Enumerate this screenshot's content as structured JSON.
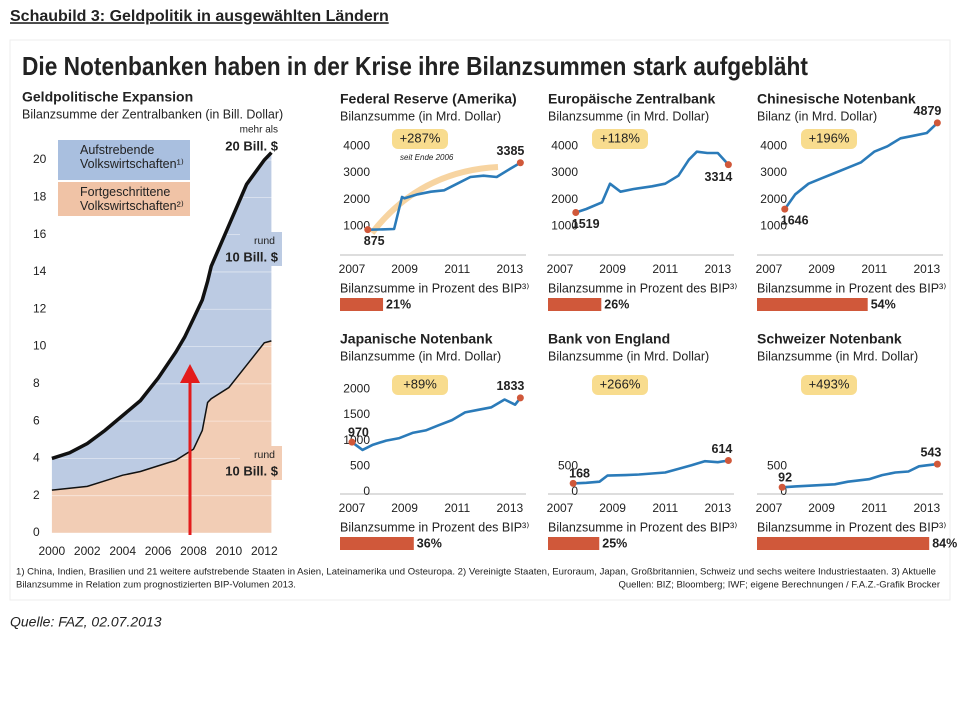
{
  "page_title": "Schaubild 3: Geldpolitik in ausgewählten Ländern",
  "headline": "Die Notenbanken haben in der Krise ihre Bilanzsummen stark aufgebläht",
  "footnote_lines": [
    "1) China, Indien, Brasilien und 21 weitere aufstrebende Staaten in Asien, Lateinamerika und Osteuropa. 2) Vereinigte Staaten, Euroraum, Japan, Großbritannien, Schweiz und sechs weitere Industriestaaten. 3) Aktuelle",
    "Bilanzsumme in Relation zum prognostizierten BIP-Volumen 2013."
  ],
  "credits": "Quellen: BIZ; Bloomberg; IWF; eigene Berechnungen /  F.A.Z.-Grafik Brocker",
  "source": "Quelle: FAZ, 02.07.2013",
  "chart_data": [
    {
      "type": "area",
      "stacked": true,
      "title": "Geldpolitische Expansion",
      "subtitle": "Bilanzsumme der Zentralbanken (in Bill. Dollar)",
      "x": [
        2000,
        2001,
        2002,
        2003,
        2004,
        2005,
        2006,
        2007,
        2007.5,
        2008,
        2008.5,
        2008.8,
        2009,
        2010,
        2011,
        2012,
        2012.4
      ],
      "series": [
        {
          "name": "Fortgeschrittene Volkswirtschaften²⁾",
          "color": "#f2cdb5",
          "legend_color": "#f0c3a6",
          "values": [
            2.3,
            2.4,
            2.5,
            2.8,
            3.1,
            3.3,
            3.6,
            3.9,
            4.2,
            4.5,
            5.5,
            7.0,
            7.2,
            7.8,
            9.0,
            10.2,
            10.3
          ]
        },
        {
          "name": "Aufstrebende Volkswirtschaften¹⁾",
          "color": "#bccbe3",
          "legend_color": "#a9bfdf",
          "values": [
            1.7,
            1.9,
            2.3,
            2.7,
            3.2,
            3.8,
            4.7,
            5.8,
            6.3,
            7.0,
            7.0,
            6.5,
            7.1,
            8.7,
            9.7,
            9.8,
            10.1
          ]
        }
      ],
      "xlim": [
        1999.5,
        2013
      ],
      "xticks": [
        2000,
        2002,
        2004,
        2006,
        2008,
        2010,
        2012
      ],
      "ylim": [
        0,
        21
      ],
      "yticks": [
        0,
        2,
        4,
        6,
        8,
        10,
        12,
        14,
        16,
        18,
        20
      ],
      "grid": true,
      "annotations": [
        "mehr als",
        "20 Bill. $",
        "rund",
        "10 Bill. $",
        "rund",
        "10 Bill. $"
      ]
    },
    {
      "type": "line",
      "title": "Federal Reserve (Amerika)",
      "subtitle": "Bilanzsumme (in Mrd. Dollar)",
      "change_label": "+287%",
      "annotation": "seit Ende 2006",
      "color": "#2b7bb9",
      "x": [
        2007.6,
        2008,
        2008.6,
        2008.9,
        2009,
        2009.5,
        2010,
        2010.5,
        2011,
        2011.5,
        2012,
        2012.5,
        2013,
        2013.4
      ],
      "values": [
        875,
        880,
        900,
        2100,
        2050,
        2200,
        2300,
        2350,
        2600,
        2850,
        2900,
        2850,
        3150,
        3385
      ],
      "xlim": [
        2007,
        2013.5
      ],
      "xticks": [
        2007,
        2009,
        2011,
        2013
      ],
      "ylim": [
        0,
        4500
      ],
      "yticks": [
        1000,
        2000,
        3000,
        4000
      ],
      "gdp_bar": {
        "label": "Bilanzsumme in Prozent des BIP³⁾",
        "color": "#d0583a",
        "values": [
          21
        ],
        "value_labels": [
          "21%"
        ]
      }
    },
    {
      "type": "line",
      "title": "Europäische Zentralbank",
      "subtitle": "Bilanzsumme (in Mrd. Dollar)",
      "change_label": "+118%",
      "color": "#2b7bb9",
      "x": [
        2007.6,
        2008,
        2008.6,
        2008.9,
        2009.3,
        2009.8,
        2010.5,
        2011,
        2011.5,
        2011.9,
        2012.2,
        2012.6,
        2013,
        2013.4
      ],
      "values": [
        1519,
        1650,
        1900,
        2600,
        2300,
        2400,
        2500,
        2600,
        2900,
        3500,
        3800,
        3750,
        3750,
        3314
      ],
      "xlim": [
        2007,
        2013.5
      ],
      "xticks": [
        2007,
        2009,
        2011,
        2013
      ],
      "ylim": [
        0,
        4500
      ],
      "yticks": [
        1000,
        2000,
        3000,
        4000
      ],
      "gdp_bar": {
        "label": "Bilanzsumme in Prozent des BIP³⁾",
        "color": "#d0583a",
        "values": [
          26
        ],
        "value_labels": [
          "26%"
        ]
      }
    },
    {
      "type": "line",
      "title": "Chinesische Notenbank",
      "subtitle": "Bilanz (in Mrd. Dollar)",
      "change_label": "+196%",
      "color": "#2b7bb9",
      "x": [
        2007.6,
        2008,
        2008.5,
        2009,
        2009.5,
        2010,
        2010.5,
        2011,
        2011.5,
        2012,
        2012.5,
        2013,
        2013.4
      ],
      "values": [
        1646,
        2200,
        2600,
        2800,
        3000,
        3200,
        3400,
        3800,
        4000,
        4300,
        4400,
        4500,
        4879
      ],
      "xlim": [
        2007,
        2013.5
      ],
      "xticks": [
        2007,
        2009,
        2011,
        2013
      ],
      "ylim": [
        0,
        4500
      ],
      "yticks": [
        1000,
        2000,
        3000,
        4000
      ],
      "gdp_bar": {
        "label": "Bilanzsumme in Prozent des BIP³⁾",
        "color": "#d0583a",
        "values": [
          54
        ],
        "value_labels": [
          "54%"
        ]
      }
    },
    {
      "type": "line",
      "title": "Japanische Notenbank",
      "subtitle": "Bilanzsumme (in Mrd. Dollar)",
      "change_label": "+89%",
      "color": "#2b7bb9",
      "x": [
        2007,
        2007.4,
        2007.8,
        2008.3,
        2008.8,
        2009.3,
        2009.8,
        2010.3,
        2010.8,
        2011.3,
        2011.8,
        2012.3,
        2012.8,
        2013.2,
        2013.4
      ],
      "values": [
        970,
        820,
        920,
        1000,
        1050,
        1150,
        1200,
        1300,
        1400,
        1550,
        1600,
        1650,
        1800,
        1700,
        1833
      ],
      "xlim": [
        2007,
        2013.5
      ],
      "xticks": [
        2007,
        2009,
        2011,
        2013
      ],
      "ylim": [
        0,
        2200
      ],
      "yticks": [
        0,
        500,
        1000,
        1500,
        2000
      ],
      "gdp_bar": {
        "label": "Bilanzsumme in Prozent des BIP³⁾",
        "color": "#d0583a",
        "values": [
          36
        ],
        "value_labels": [
          "36%"
        ]
      }
    },
    {
      "type": "line",
      "title": "Bank von England",
      "subtitle": "Bilanzsumme (in Mrd. Dollar)",
      "change_label": "+266%",
      "color": "#2b7bb9",
      "x": [
        2007.5,
        2008,
        2008.5,
        2008.8,
        2009.5,
        2010,
        2011,
        2011.5,
        2012,
        2012.5,
        2013,
        2013.4
      ],
      "values": [
        168,
        180,
        200,
        320,
        330,
        340,
        380,
        450,
        520,
        600,
        580,
        614
      ],
      "xlim": [
        2007,
        2013.5
      ],
      "xticks": [
        2007,
        2009,
        2011,
        2013
      ],
      "ylim": [
        0,
        2200
      ],
      "yticks": [
        0,
        500
      ],
      "gdp_bar": {
        "label": "Bilanzsumme in Prozent des BIP³⁾",
        "color": "#d0583a",
        "values": [
          25
        ],
        "value_labels": [
          "25%"
        ]
      }
    },
    {
      "type": "line",
      "title": "Schweizer Notenbank",
      "subtitle": "Bilanzsumme (in Mrd. Dollar)",
      "change_label": "+493%",
      "color": "#2b7bb9",
      "x": [
        2007.5,
        2008,
        2008.8,
        2009.5,
        2010,
        2010.8,
        2011.3,
        2011.8,
        2012.3,
        2012.7,
        2013,
        2013.4
      ],
      "values": [
        92,
        110,
        130,
        150,
        200,
        250,
        330,
        380,
        400,
        500,
        520,
        543
      ],
      "xlim": [
        2007,
        2013.5
      ],
      "xticks": [
        2007,
        2009,
        2011,
        2013
      ],
      "ylim": [
        0,
        2200
      ],
      "yticks": [
        0,
        500
      ],
      "gdp_bar": {
        "label": "Bilanzsumme in Prozent des BIP³⁾",
        "color": "#d0583a",
        "values": [
          84
        ],
        "value_labels": [
          "84%"
        ]
      }
    }
  ]
}
